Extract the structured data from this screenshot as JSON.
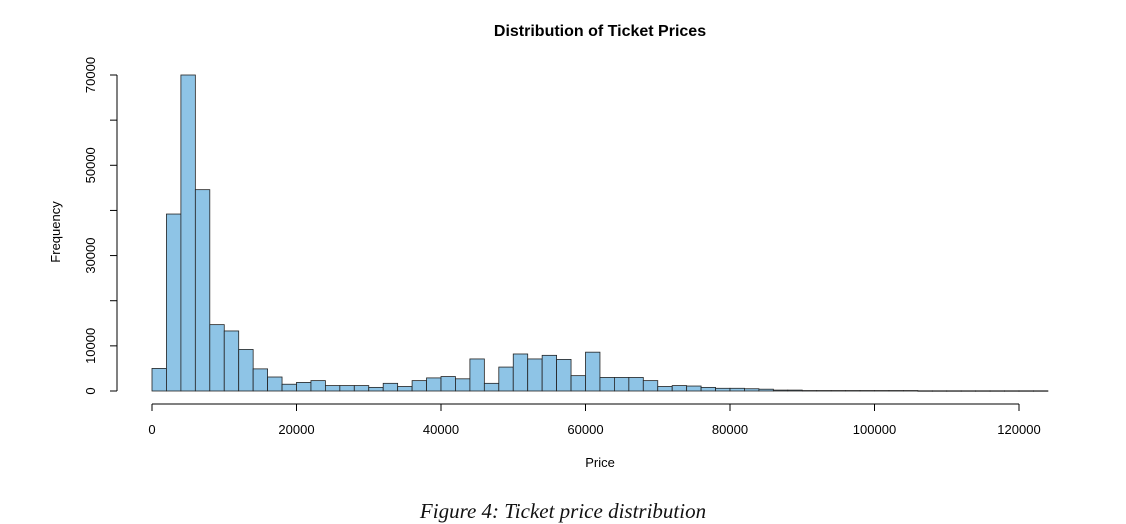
{
  "caption": "Figure 4: Ticket price distribution",
  "chart_data": {
    "type": "bar",
    "title": "Distribution of Ticket Prices",
    "xlabel": "Price",
    "ylabel": "Frequency",
    "bin_width": 2000,
    "x_start": 0,
    "xlim": [
      0,
      120000
    ],
    "ylim": [
      0,
      70000
    ],
    "x_ticks": [
      0,
      20000,
      40000,
      60000,
      80000,
      100000,
      120000
    ],
    "y_ticks": [
      0,
      10000,
      30000,
      50000,
      70000
    ],
    "y_minor_ticks": [
      20000,
      40000,
      60000
    ],
    "colors": {
      "bar_fill": "#8ec4e6",
      "bar_stroke": "#222222",
      "axis": "#000000"
    },
    "values": [
      5000,
      39200,
      70000,
      44600,
      14700,
      13300,
      9200,
      4900,
      3100,
      1500,
      1900,
      2300,
      1200,
      1200,
      1200,
      800,
      1700,
      1000,
      2300,
      2900,
      3200,
      2700,
      7100,
      1700,
      5300,
      8200,
      7100,
      7900,
      7000,
      3400,
      8600,
      3000,
      3000,
      3000,
      2300,
      1000,
      1200,
      1100,
      800,
      600,
      600,
      500,
      400,
      200,
      200,
      100,
      100,
      100,
      100,
      100,
      100,
      100,
      100,
      50,
      50,
      50,
      50,
      50,
      50,
      50,
      50,
      50
    ]
  }
}
